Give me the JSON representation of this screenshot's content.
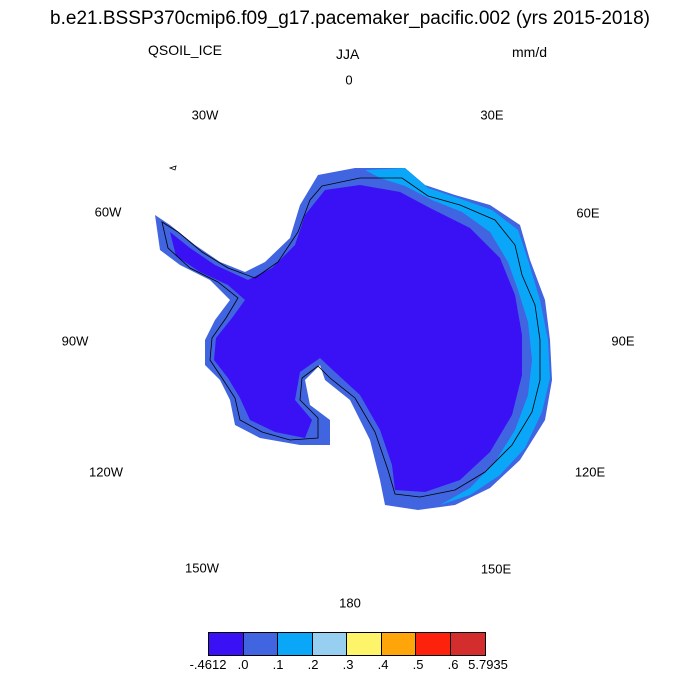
{
  "title": "b.e21.BSSP370cmip6.f09_g17.pacemaker_pacific.002 (yrs 2015-2018)",
  "variable": "QSOIL_ICE",
  "season": "JJA",
  "units": "mm/d",
  "longitude_labels": [
    "0",
    "30E",
    "60E",
    "90E",
    "120E",
    "150E",
    "180",
    "150W",
    "120W",
    "90W",
    "60W",
    "30W"
  ],
  "colorbar": {
    "colors": [
      "#3a10f5",
      "#4164e0",
      "#0aa6f8",
      "#96cff0",
      "#fef46a",
      "#fda509",
      "#fd220c",
      "#d42d2d"
    ],
    "labels": [
      "-.4612",
      ".0",
      ".1",
      ".2",
      ".3",
      ".4",
      ".5",
      ".6",
      "5.7935"
    ]
  },
  "map_colors": {
    "interior": "#3a10f5",
    "coast_band": "#4164e0",
    "coast_highlight": "#0aa6f8",
    "coastline": "#000000"
  }
}
